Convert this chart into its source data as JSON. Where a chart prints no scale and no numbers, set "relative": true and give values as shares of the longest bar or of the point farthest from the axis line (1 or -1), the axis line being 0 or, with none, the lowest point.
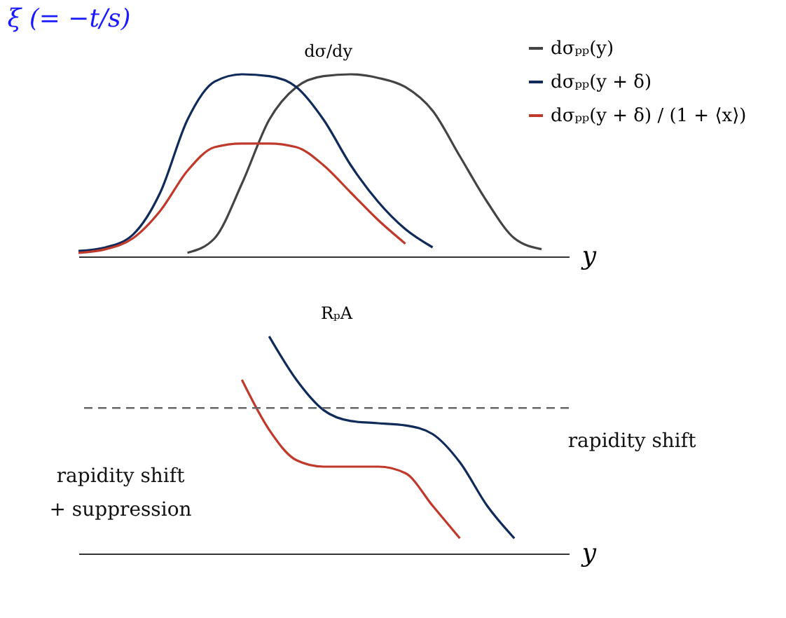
{
  "chart_data": [
    {
      "type": "line",
      "title": "ξ (= −t/s)",
      "xlabel": "y",
      "ylabel": "dσ/dy",
      "relative": true,
      "legend": "top right",
      "grid": false,
      "categories": [
        null,
        null,
        null,
        null,
        null,
        null,
        null,
        null,
        null,
        null,
        null,
        null,
        null,
        null,
        null,
        null,
        null,
        null,
        null
      ],
      "series": [
        {
          "name": "dσₚₚ(y)",
          "color": "#444444",
          "values": [
            null,
            null,
            null,
            null,
            0.02,
            0.1,
            0.4,
            0.75,
            0.93,
            0.99,
            1,
            0.98,
            0.93,
            0.8,
            0.55,
            0.3,
            0.1,
            0.04,
            null
          ]
        },
        {
          "name": "dσₚₚ(y + δ)",
          "color": "#102a5a",
          "values": [
            0.03,
            0.05,
            0.12,
            0.35,
            0.75,
            0.96,
            1,
            0.99,
            0.93,
            0.75,
            0.5,
            0.3,
            0.15,
            0.05,
            null,
            null,
            null,
            null,
            null
          ]
        },
        {
          "name": "dσₚₚ(y + δ) / (1 + ⟨x⟩)",
          "color": "#c0392b",
          "values": [
            0.02,
            0.04,
            0.1,
            0.25,
            0.47,
            0.6,
            0.62,
            0.62,
            0.6,
            0.5,
            0.35,
            0.2,
            0.07,
            null,
            null,
            null,
            null,
            null,
            null
          ]
        }
      ]
    },
    {
      "type": "line",
      "xlabel": "y",
      "ylabel": "RₚA",
      "relative": true,
      "grid": false,
      "categories": [
        null,
        null,
        null,
        null,
        null,
        null,
        null,
        null,
        null,
        null,
        null,
        null,
        null,
        null,
        null,
        null,
        null,
        null,
        null
      ],
      "series": [
        {
          "color": "#102a5a",
          "values": [
            null,
            null,
            null,
            null,
            null,
            null,
            null,
            1,
            0.8,
            0.66,
            0.61,
            0.6,
            0.59,
            0.55,
            0.42,
            0.22,
            0.07,
            null,
            null
          ]
        },
        {
          "color": "#c0392b",
          "values": [
            null,
            null,
            null,
            null,
            null,
            null,
            0.8,
            0.57,
            0.43,
            0.4,
            0.4,
            0.4,
            0.37,
            0.22,
            0.07,
            null,
            null,
            null,
            null
          ]
        }
      ],
      "ref_lines": [
        {
          "axis": "y",
          "value": 0.67,
          "line_style": "dashed",
          "color": "#666666"
        }
      ],
      "annotations": [
        "rapidity shift\n+ suppression",
        "rapidity shift"
      ]
    }
  ]
}
